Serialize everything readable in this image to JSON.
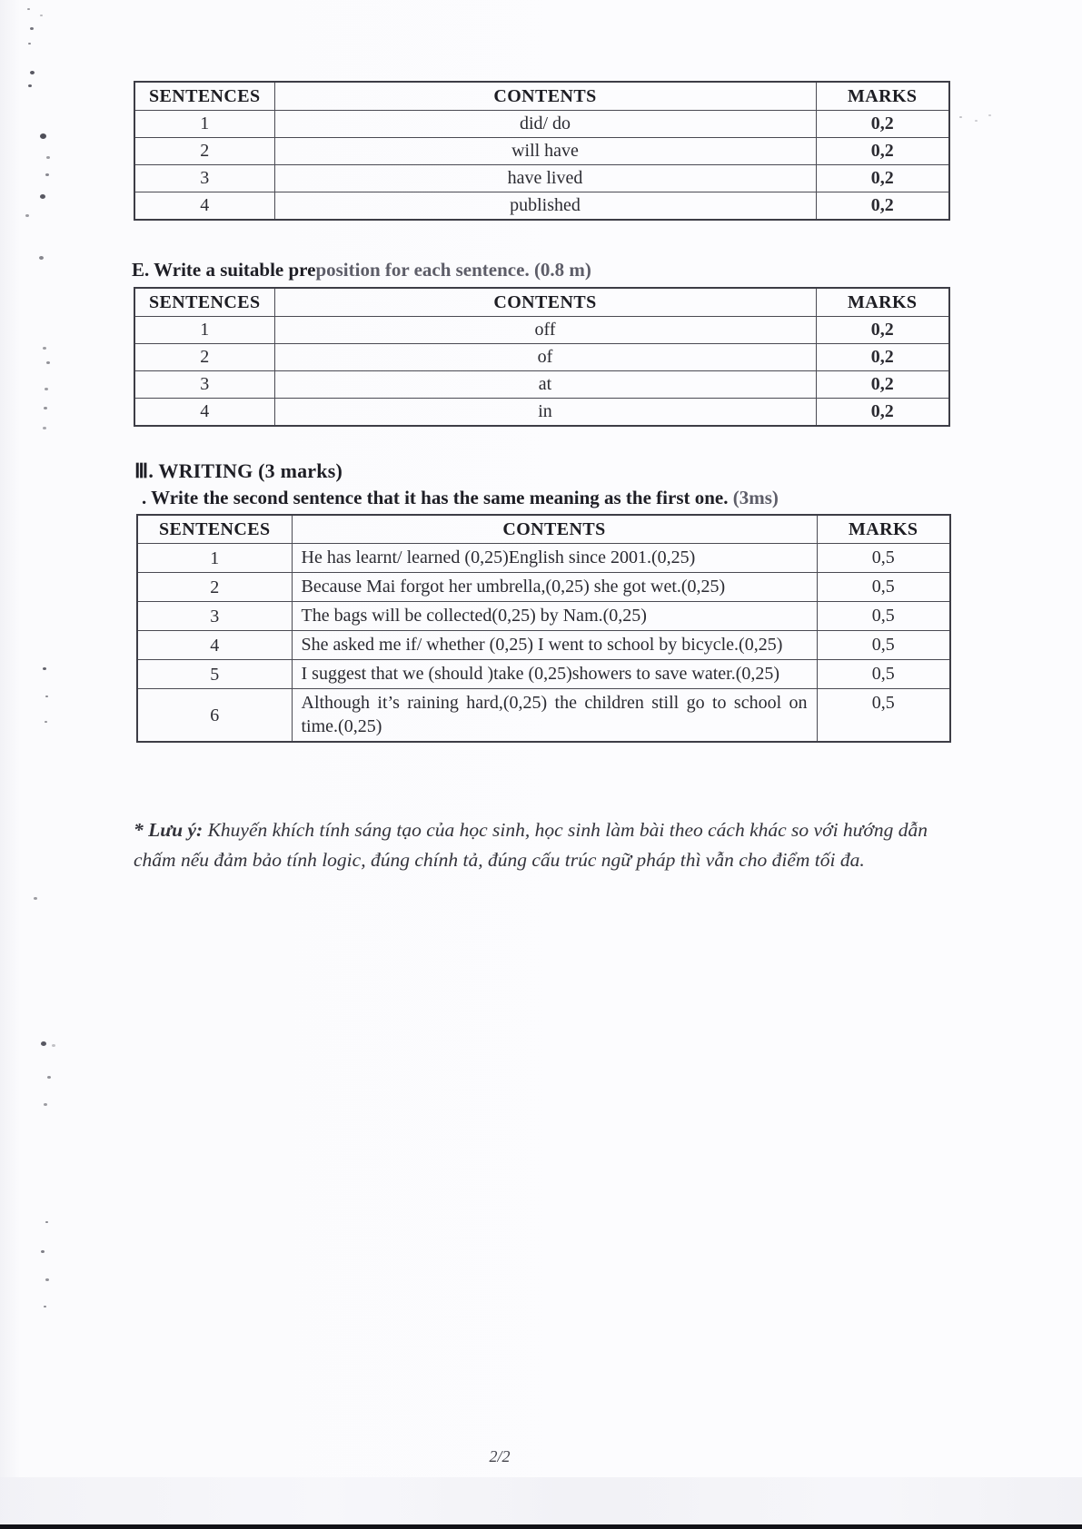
{
  "doc": {
    "page_number": "2/2",
    "ink_color": "#26262c",
    "light_ink_color": "#5d5d68",
    "note": {
      "label": "* Lưu ý:",
      "text": " Khuyến khích tính sáng tạo của học sinh, học sinh làm bài theo cách khác so với hướng dẫn chấm nếu đảm bảo tính logic, đúng chính tả, đúng cấu trúc ngữ pháp thì vẫn cho điểm tối đa."
    }
  },
  "section_e": {
    "heading_dark": "E. Write a suitable pre",
    "heading_light": "position for each sentence. (0.8 m)"
  },
  "section_writing": {
    "heading": "Ⅲ. WRITING (3 marks)",
    "subheading_dark": ". Write the second sentence that it has the same meaning as the first one. ",
    "subheading_light": "(3ms)"
  },
  "tables": [
    {
      "name": "tense-answers",
      "headers": [
        "SENTENCES",
        "CONTENTS",
        "MARKS"
      ],
      "rows": [
        [
          "1",
          "did/ do",
          "0,2"
        ],
        [
          "2",
          "will have",
          "0,2"
        ],
        [
          "3",
          "have lived",
          "0,2"
        ],
        [
          "4",
          "published",
          "0,2"
        ]
      ]
    },
    {
      "name": "preposition-answers",
      "headers": [
        "SENTENCES",
        "CONTENTS",
        "MARKS"
      ],
      "rows": [
        [
          "1",
          "off",
          "0,2"
        ],
        [
          "2",
          "of",
          "0,2"
        ],
        [
          "3",
          "at",
          "0,2"
        ],
        [
          "4",
          "in",
          "0,2"
        ]
      ]
    },
    {
      "name": "writing-answers",
      "headers": [
        "SENTENCES",
        "CONTENTS",
        "MARKS"
      ],
      "rows": [
        [
          "1",
          "He has learnt/ learned (0,25)English since 2001.(0,25)",
          "0,5"
        ],
        [
          "2",
          "Because Mai forgot her umbrella,(0,25) she got wet.(0,25)",
          "0,5"
        ],
        [
          "3",
          "The bags will be collected(0,25) by Nam.(0,25)",
          "0,5"
        ],
        [
          "4",
          "She asked me if/ whether (0,25) I went to school by bicycle.(0,25)",
          "0,5"
        ],
        [
          "5",
          "I suggest that we (should )take (0,25)showers to save water.(0,25)",
          "0,5"
        ],
        [
          "6",
          "Although it’s raining hard,(0,25) the children still go to school on time.(0,25)",
          "0,5"
        ]
      ]
    }
  ]
}
